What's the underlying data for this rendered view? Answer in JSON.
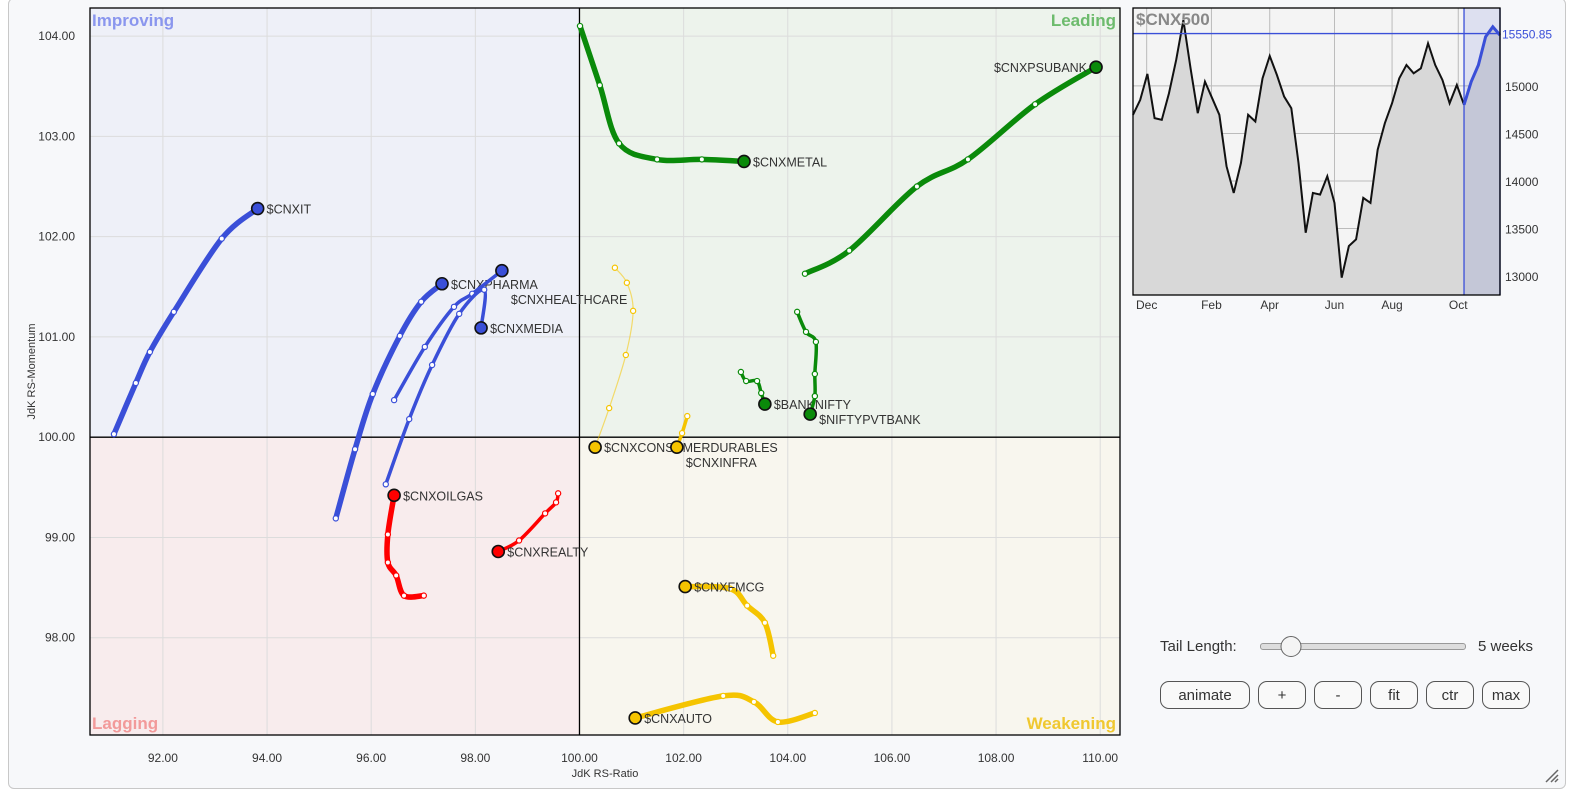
{
  "chart_data": [
    {
      "type": "scatter",
      "subtype": "relative-rotation-graph",
      "xlabel": "JdK RS-Ratio",
      "ylabel": "JdK RS-Momentum",
      "xlim": [
        90.6,
        110.38
      ],
      "ylim": [
        97.03,
        104.28
      ],
      "x_ticks": [
        92,
        94,
        96,
        98,
        100,
        102,
        104,
        106,
        108,
        110
      ],
      "y_ticks": [
        98,
        99,
        100,
        101,
        102,
        103,
        104
      ],
      "x_tick_labels": [
        "92.00",
        "94.00",
        "96.00",
        "98.00",
        "100.00",
        "102.00",
        "104.00",
        "106.00",
        "108.00",
        "110.00"
      ],
      "y_tick_labels": [
        "98.00",
        "99.00",
        "100.00",
        "101.00",
        "102.00",
        "103.00",
        "104.00"
      ],
      "center": [
        100,
        100
      ],
      "grid": true,
      "quadrants": [
        {
          "name": "Improving",
          "position": "top-left",
          "bg": "#eef0f8",
          "color": "#8a96ee"
        },
        {
          "name": "Leading",
          "position": "top-right",
          "bg": "#edf3ec",
          "color": "#6dbb6d"
        },
        {
          "name": "Lagging",
          "position": "bottom-left",
          "bg": "#f8eced",
          "color": "#f29a9a"
        },
        {
          "name": "Weakening",
          "position": "bottom-right",
          "bg": "#f8f6ee",
          "color": "#f0c830"
        }
      ],
      "series": [
        {
          "name": "$CNXIT",
          "color": "#3a4fd8",
          "tail": "thick",
          "label_side": "right",
          "points": [
            [
              91.06,
              100.03
            ],
            [
              91.48,
              100.54
            ],
            [
              91.75,
              100.85
            ],
            [
              92.21,
              101.25
            ],
            [
              93.13,
              101.98
            ],
            [
              93.82,
              102.28
            ]
          ]
        },
        {
          "name": "$CNXPHARMA",
          "color": "#3a4fd8",
          "tail": "thick",
          "label_side": "right",
          "points": [
            [
              95.32,
              99.19
            ],
            [
              95.69,
              99.88
            ],
            [
              96.03,
              100.43
            ],
            [
              96.55,
              101.01
            ],
            [
              96.96,
              101.35
            ],
            [
              97.36,
              101.53
            ]
          ]
        },
        {
          "name": "$CNXHEALTHCARE",
          "color": "#3a4fd8",
          "tail": "medium",
          "label_side": "right",
          "points": [
            [
              96.44,
              100.37
            ],
            [
              97.03,
              100.9
            ],
            [
              97.59,
              101.3
            ],
            [
              97.94,
              101.43
            ],
            [
              98.51,
              101.66
            ]
          ]
        },
        {
          "name": "$CNXMEDIA",
          "color": "#3a4fd8",
          "tail": "medium",
          "label_side": "right",
          "points": [
            [
              96.28,
              99.53
            ],
            [
              96.73,
              100.18
            ],
            [
              97.17,
              100.72
            ],
            [
              97.69,
              101.23
            ],
            [
              98.17,
              101.47
            ],
            [
              98.11,
              101.09
            ]
          ]
        },
        {
          "name": "$CNXOILGAS",
          "color": "#ff0000",
          "tail": "thick",
          "label_side": "right",
          "points": [
            [
              97.01,
              98.42
            ],
            [
              96.63,
              98.42
            ],
            [
              96.48,
              98.62
            ],
            [
              96.32,
              98.75
            ],
            [
              96.32,
              99.03
            ],
            [
              96.44,
              99.42
            ]
          ]
        },
        {
          "name": "$CNXREALTY",
          "color": "#ff0000",
          "tail": "medium",
          "label_side": "right",
          "points": [
            [
              99.59,
              99.44
            ],
            [
              99.55,
              99.35
            ],
            [
              99.34,
              99.24
            ],
            [
              98.84,
              98.97
            ],
            [
              98.44,
              98.86
            ]
          ]
        },
        {
          "name": "$CNXCONSUMERDURABLES",
          "color": "#f5c400",
          "tail": "faint",
          "label_side": "right",
          "points": [
            [
              100.68,
              101.69
            ],
            [
              100.91,
              101.54
            ],
            [
              101.03,
              101.26
            ],
            [
              100.89,
              100.82
            ],
            [
              100.57,
              100.29
            ],
            [
              100.3,
              99.9
            ]
          ]
        },
        {
          "name": "$CNXINFRA",
          "color": "#f5c400",
          "tail": "medium",
          "label_side": "right",
          "points": [
            [
              102.07,
              100.21
            ],
            [
              101.97,
              100.04
            ],
            [
              101.87,
              99.9
            ]
          ]
        },
        {
          "name": "$CNXMETAL",
          "color": "#0a8a0a",
          "tail": "thick",
          "label_side": "right",
          "points": [
            [
              100.01,
              104.1
            ],
            [
              100.39,
              103.51
            ],
            [
              100.76,
              102.93
            ],
            [
              101.49,
              102.77
            ],
            [
              102.35,
              102.77
            ],
            [
              103.16,
              102.75
            ]
          ]
        },
        {
          "name": "$CNXPSUBANK",
          "color": "#0a8a0a",
          "tail": "thick",
          "label_side": "left",
          "points": [
            [
              104.33,
              101.63
            ],
            [
              105.18,
              101.86
            ],
            [
              106.48,
              102.5
            ],
            [
              107.46,
              102.77
            ],
            [
              108.75,
              103.32
            ],
            [
              109.92,
              103.69
            ]
          ]
        },
        {
          "name": "$BANKNIFTY",
          "color": "#0a8a0a",
          "tail": "medium",
          "label_side": "right",
          "points": [
            [
              103.1,
              100.65
            ],
            [
              103.2,
              100.56
            ],
            [
              103.41,
              100.56
            ],
            [
              103.49,
              100.44
            ],
            [
              103.56,
              100.33
            ]
          ]
        },
        {
          "name": "$NIFTYPVTBANK",
          "color": "#0a8a0a",
          "tail": "medium",
          "label_side": "right",
          "points": [
            [
              104.18,
              101.25
            ],
            [
              104.35,
              101.05
            ],
            [
              104.54,
              100.95
            ],
            [
              104.52,
              100.63
            ],
            [
              104.52,
              100.41
            ],
            [
              104.43,
              100.23
            ]
          ]
        },
        {
          "name": "$CNXFMCG",
          "color": "#f5c400",
          "tail": "thick",
          "label_side": "right",
          "points": [
            [
              103.72,
              97.82
            ],
            [
              103.56,
              98.15
            ],
            [
              103.22,
              98.32
            ],
            [
              102.89,
              98.49
            ],
            [
              102.03,
              98.51
            ]
          ]
        },
        {
          "name": "$CNXAUTO",
          "color": "#f5c400",
          "tail": "thick",
          "label_side": "right",
          "points": [
            [
              104.52,
              97.25
            ],
            [
              103.81,
              97.16
            ],
            [
              103.35,
              97.36
            ],
            [
              102.76,
              97.42
            ],
            [
              101.07,
              97.2
            ]
          ]
        }
      ]
    },
    {
      "type": "area",
      "title": "$CNX500",
      "ylim": [
        12800,
        15820
      ],
      "y_ticks": [
        13000,
        13500,
        14000,
        14500,
        15000
      ],
      "y_tick_labels": [
        "13000",
        "13500",
        "14000",
        "14500",
        "15000"
      ],
      "x_tick_labels": [
        {
          "label": "Dec",
          "index": 1.9
        },
        {
          "label": "Feb",
          "index": 10.9
        },
        {
          "label": "Apr",
          "index": 19
        },
        {
          "label": "Jun",
          "index": 28
        },
        {
          "label": "Aug",
          "index": 36
        },
        {
          "label": "Oct",
          "index": 45.2
        }
      ],
      "current_value": 15550.85,
      "current_label": "15550.85",
      "highlight_from_index": 46,
      "line_color": "#111111",
      "highlight_color": "#3a4fd8",
      "values": [
        14696,
        14853,
        15126,
        14661,
        14643,
        14923,
        15273,
        15692,
        15185,
        14713,
        15045,
        14871,
        14696,
        14154,
        13874,
        14189,
        14696,
        14626,
        15080,
        15315,
        15115,
        14888,
        14766,
        14189,
        13455,
        13874,
        13857,
        14049,
        13769,
        12983,
        13315,
        13385,
        13822,
        13769,
        14329,
        14608,
        14818,
        15080,
        15220,
        15133,
        15185,
        15448,
        15220,
        15063,
        14818,
        15010,
        14801,
        15045,
        15220,
        15517,
        15622,
        15535
      ]
    }
  ],
  "controls": {
    "tail_length_label": "Tail Length:",
    "tail_length_value": "5 weeks",
    "tail_length_fraction": 0.15,
    "buttons": [
      {
        "id": "animate",
        "label": "animate"
      },
      {
        "id": "zoom-in",
        "label": "+"
      },
      {
        "id": "zoom-out",
        "label": "-"
      },
      {
        "id": "fit",
        "label": "fit"
      },
      {
        "id": "ctr",
        "label": "ctr"
      },
      {
        "id": "max",
        "label": "max"
      }
    ]
  }
}
